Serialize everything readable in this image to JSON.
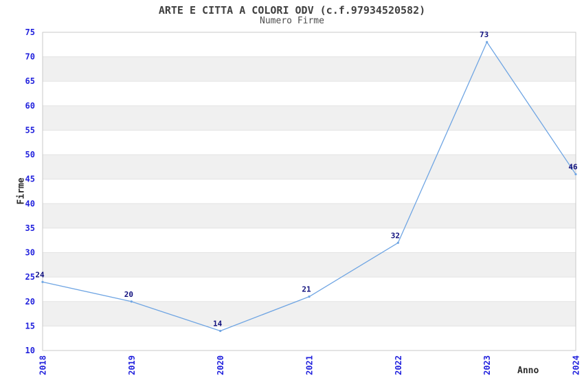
{
  "chart_data": {
    "type": "line",
    "title": "ARTE E CITTA A COLORI ODV (c.f.97934520582)",
    "subtitle": "Numero Firme",
    "xlabel": "Anno",
    "ylabel": "Firme",
    "categories": [
      "2018",
      "2019",
      "2020",
      "2021",
      "2022",
      "2023",
      "2024"
    ],
    "values": [
      24,
      20,
      14,
      21,
      32,
      73,
      46
    ],
    "point_labels": [
      "24",
      "20",
      "14",
      "21",
      "32",
      "73",
      "46"
    ],
    "ylim": [
      10,
      75
    ],
    "ytick_step": 5,
    "yticks": [
      10,
      15,
      20,
      25,
      30,
      35,
      40,
      45,
      50,
      55,
      60,
      65,
      70,
      75
    ],
    "grid": "horizontal-alternating-bands",
    "legend": "none",
    "colors": {
      "line": "#6fa5e3",
      "tick_label": "#2222dd",
      "point_label": "#10107e",
      "title_text": "#3f3f3f",
      "band_gray": "#f0f0f0",
      "gridline": "#e3e3e3",
      "plot_border": "#c9c9c9",
      "background": "#ffffff"
    }
  }
}
